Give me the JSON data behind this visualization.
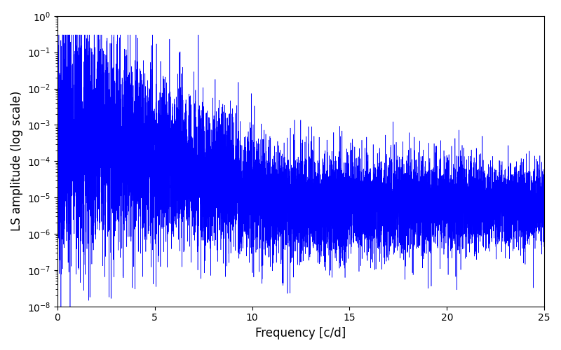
{
  "line_color": "#0000ff",
  "xlabel": "Frequency [c/d]",
  "ylabel": "LS amplitude (log scale)",
  "xlim": [
    0,
    25
  ],
  "ylim": [
    1e-08,
    1.0
  ],
  "xmin": 0.0,
  "xmax": 25.0,
  "n_points": 10000,
  "seed": 42,
  "figsize": [
    8.0,
    5.0
  ],
  "dpi": 100,
  "linewidth": 0.4,
  "background_color": "#ffffff",
  "xticks": [
    0,
    5,
    10,
    15,
    20,
    25
  ]
}
